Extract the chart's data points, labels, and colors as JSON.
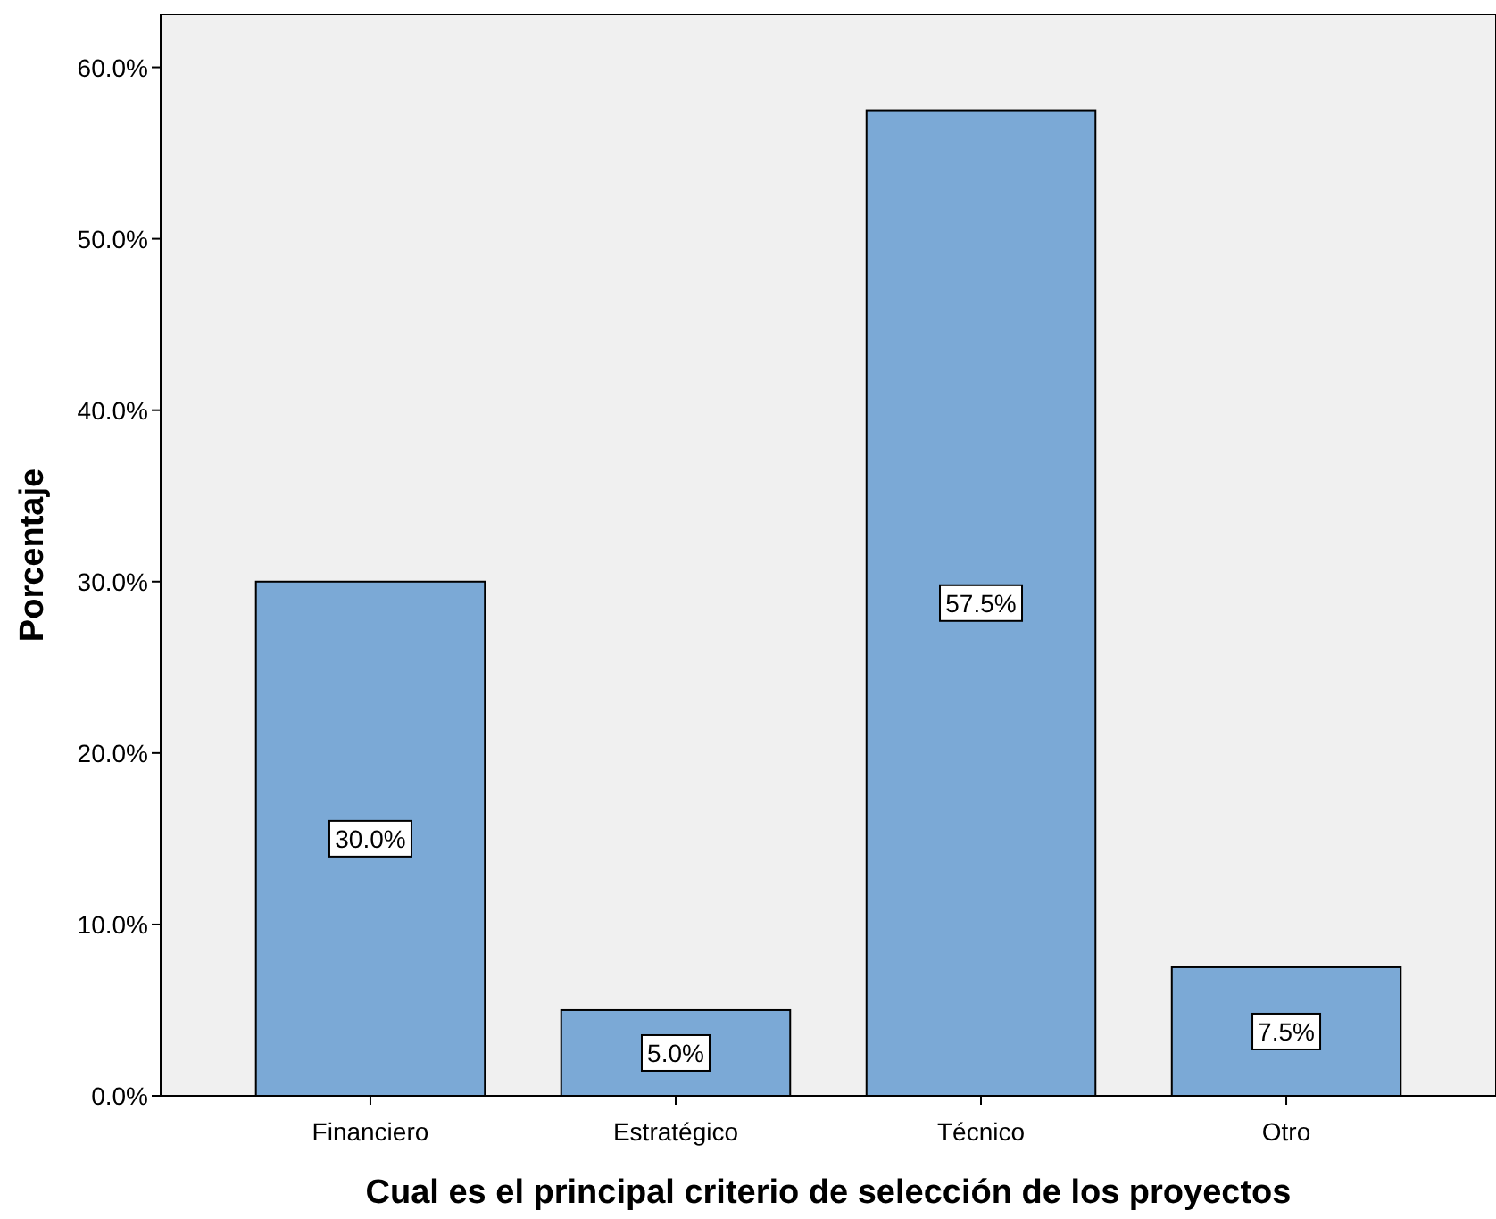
{
  "chart_data": {
    "type": "bar",
    "xlabel": "Cual es el principal criterio de selección de los proyectos",
    "ylabel": "Porcentaje",
    "categories": [
      "Financiero",
      "Estratégico",
      "Técnico",
      "Otro"
    ],
    "values": [
      30.0,
      5.0,
      57.5,
      7.5
    ],
    "value_labels": [
      "30.0%",
      "5.0%",
      "57.5%",
      "7.5%"
    ],
    "color": "#7ba9d6",
    "ylim": [
      0,
      63.1
    ],
    "yticks": [
      {
        "value": 0,
        "label": "0.0%"
      },
      {
        "value": 10,
        "label": "10.0%"
      },
      {
        "value": 20,
        "label": "20.0%"
      },
      {
        "value": 30,
        "label": "30.0%"
      },
      {
        "value": 40,
        "label": "40.0%"
      },
      {
        "value": 50,
        "label": "50.0%"
      },
      {
        "value": 60,
        "label": "60.0%"
      }
    ],
    "grid": false
  }
}
